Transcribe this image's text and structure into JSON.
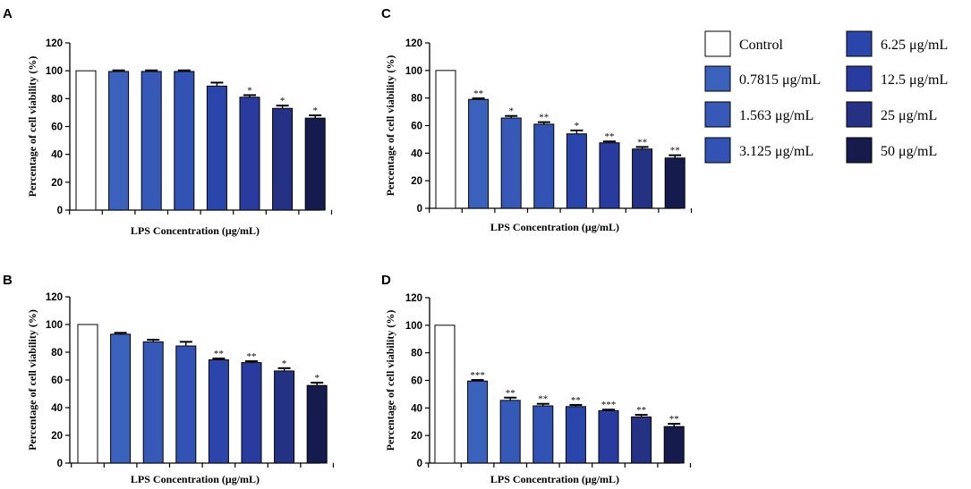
{
  "figure": {
    "series_names": [
      "Control",
      "0.7815 μg/mL",
      "1.563 μg/mL",
      "3.125 μg/mL",
      "6.25 μg/mL",
      "12.5 μg/mL",
      "25 μg/mL",
      "50 μg/mL"
    ],
    "series_colors": [
      "#ffffff",
      "#3a62bd",
      "#3659b8",
      "#3253b4",
      "#2b46aa",
      "#2a3ba0",
      "#253283",
      "#151c4d"
    ]
  },
  "chart_data": [
    {
      "panel": "A",
      "type": "bar",
      "xlabel": "LPS Concentration (μg/mL)",
      "ylabel": "Percentage of cell viability (%)",
      "ylim": [
        0,
        120
      ],
      "yticks": [
        "0",
        "20",
        "40",
        "60",
        "80",
        "100",
        "120"
      ],
      "categories": [
        "Control",
        "0.7815 μg/mL",
        "1.563 μg/mL",
        "3.125 μg/mL",
        "6.25 μg/mL",
        "12.5 μg/mL",
        "25 μg/mL",
        "50 μg/mL"
      ],
      "values": [
        100,
        99.5,
        99.5,
        99.5,
        89,
        81,
        73,
        66
      ],
      "errors": [
        0,
        0.8,
        0.8,
        0.8,
        2.5,
        1.5,
        2,
        2
      ],
      "significance": [
        "",
        "",
        "",
        "",
        "",
        "*",
        "*",
        "*"
      ]
    },
    {
      "panel": "B",
      "type": "bar",
      "xlabel": "LPS Concentration (μg/mL)",
      "ylabel": "Percentage of cell viability (%)",
      "ylim": [
        0,
        120
      ],
      "yticks": [
        "0",
        "20",
        "40",
        "60",
        "80",
        "100",
        "120"
      ],
      "categories": [
        "Control",
        "0.7815 μg/mL",
        "1.563 μg/mL",
        "3.125 μg/mL",
        "6.25 μg/mL",
        "12.5 μg/mL",
        "25 μg/mL",
        "50 μg/mL"
      ],
      "values": [
        100,
        93,
        87.5,
        84.5,
        74.5,
        72.5,
        66.5,
        56
      ],
      "errors": [
        0,
        1,
        1.5,
        3,
        1,
        1,
        2,
        2
      ],
      "significance": [
        "",
        "",
        "",
        "",
        "**",
        "**",
        "*",
        "*"
      ]
    },
    {
      "panel": "C",
      "type": "bar",
      "xlabel": "LPS Concentration (μg/mL)",
      "ylabel": "Percentage of cell viability (%)",
      "ylim": [
        0,
        120
      ],
      "yticks": [
        "0",
        "20",
        "40",
        "60",
        "80",
        "100",
        "120"
      ],
      "categories": [
        "Control",
        "0.7815 μg/mL",
        "1.563 μg/mL",
        "3.125 μg/mL",
        "6.25 μg/mL",
        "12.5 μg/mL",
        "25 μg/mL",
        "50 μg/mL"
      ],
      "values": [
        100,
        79,
        65.5,
        61,
        54,
        47.5,
        43,
        36.5
      ],
      "errors": [
        0,
        0.8,
        1.5,
        1.5,
        2.5,
        1,
        1.5,
        2
      ],
      "significance": [
        "",
        "**",
        "*",
        "**",
        "*",
        "**",
        "**",
        "**"
      ]
    },
    {
      "panel": "D",
      "type": "bar",
      "xlabel": "LPS Concentration (μg/mL)",
      "ylabel": "Percentage of cell viability  (%)",
      "ylim": [
        0,
        120
      ],
      "yticks": [
        "0",
        "20",
        "40",
        "60",
        "80",
        "100",
        "120"
      ],
      "categories": [
        "Control",
        "0.7815 μg/mL",
        "1.563 μg/mL",
        "3.125 μg/mL",
        "6.25 μg/mL",
        "12.5 μg/mL",
        "25 μg/mL",
        "50 μg/mL"
      ],
      "values": [
        100,
        59.5,
        45.5,
        41.5,
        41,
        38,
        33.5,
        26.5
      ],
      "errors": [
        0,
        0.8,
        2,
        1.5,
        1.2,
        0.8,
        1.5,
        2
      ],
      "significance": [
        "",
        "***",
        "**",
        "**",
        "**",
        "***",
        "**",
        "**"
      ]
    }
  ]
}
